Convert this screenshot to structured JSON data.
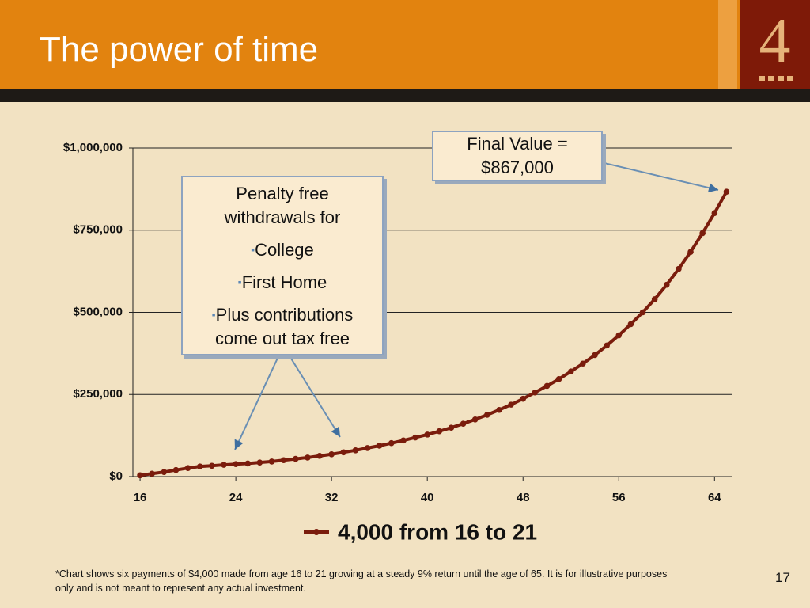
{
  "slide": {
    "title": "The power of time",
    "logo": "4",
    "page_number": "17",
    "footnote": "*Chart shows six payments of $4,000 made from age 16 to 21 growing at a steady 9% return until the age of 65.  It is for illustrative purposes only and is not meant to represent any actual investment."
  },
  "chart_data": {
    "type": "line",
    "x": [
      16,
      17,
      18,
      19,
      20,
      21,
      22,
      23,
      24,
      25,
      26,
      27,
      28,
      29,
      30,
      31,
      32,
      33,
      34,
      35,
      36,
      37,
      38,
      39,
      40,
      41,
      42,
      43,
      44,
      45,
      46,
      47,
      48,
      49,
      50,
      51,
      52,
      53,
      54,
      55,
      56,
      57,
      58,
      59,
      60,
      61,
      62,
      63,
      64,
      65
    ],
    "series": [
      {
        "name": "4,000 from 16 to 21",
        "color": "#7a1c0c",
        "values": [
          4000,
          9000,
          14000,
          20000,
          26000,
          31000,
          33000,
          36000,
          38000,
          40000,
          43000,
          46000,
          50000,
          54000,
          58000,
          63000,
          68000,
          74000,
          80000,
          87000,
          94000,
          102000,
          110000,
          119000,
          128000,
          138000,
          149000,
          161000,
          174000,
          188000,
          203000,
          219000,
          237000,
          256000,
          276000,
          297000,
          320000,
          344000,
          370000,
          399000,
          430000,
          464000,
          500000,
          540000,
          584000,
          632000,
          684000,
          741000,
          802000,
          867000
        ]
      }
    ],
    "xlim": [
      15.4,
      65.5
    ],
    "xticks": [
      16,
      24,
      32,
      40,
      48,
      56,
      64
    ],
    "ylim": [
      0,
      1000000
    ],
    "yticks": [
      {
        "value": 0,
        "label": "$0"
      },
      {
        "value": 250000,
        "label": "$250,000"
      },
      {
        "value": 500000,
        "label": "$500,000"
      },
      {
        "value": 750000,
        "label": "$750,000"
      },
      {
        "value": 1000000,
        "label": "$1,000,000"
      }
    ],
    "grid": true,
    "legend": "bottom",
    "annotations": [
      {
        "lines": [
          "Final Value =",
          "$867,000"
        ]
      },
      {
        "lines": [
          "Penalty free",
          "withdrawals for"
        ],
        "bullets": [
          "College",
          "First Home",
          "Plus contributions come out tax free"
        ]
      }
    ]
  }
}
